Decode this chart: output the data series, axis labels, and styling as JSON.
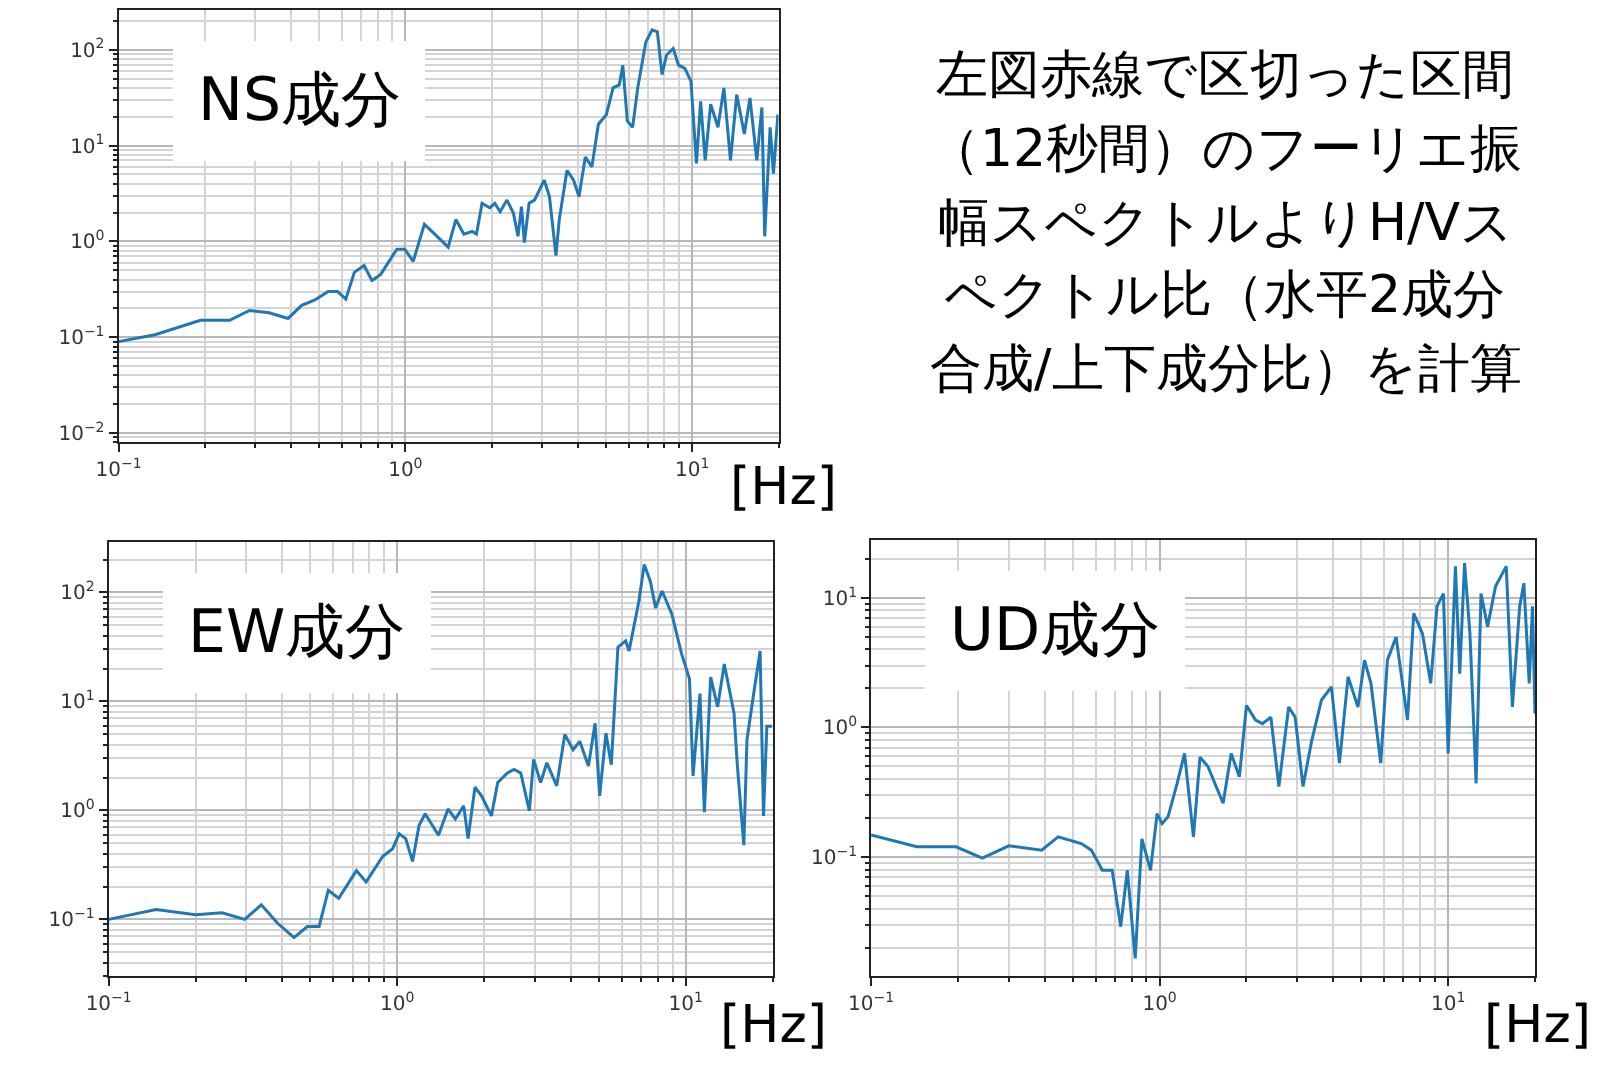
{
  "chart_data": [
    {
      "type": "line",
      "title": "NS成分",
      "xlabel": "[Hz]",
      "log": "xy",
      "grid": true,
      "color": "#1f77b4",
      "xlim": [
        0.1,
        20
      ],
      "ylim": [
        0.008,
        260
      ],
      "xticks": [
        {
          "value": 0.1,
          "label": "10$^{−1}$"
        },
        {
          "value": 1,
          "label": "10$^{0}$"
        },
        {
          "value": 10,
          "label": "10$^{1}$"
        }
      ],
      "yticks": [
        {
          "value": 0.01,
          "label": "10$^{−2}$"
        },
        {
          "value": 0.1,
          "label": "10$^{−1}$"
        },
        {
          "value": 1,
          "label": "10$^{0}$"
        },
        {
          "value": 10,
          "label": "10$^{1}$"
        },
        {
          "value": 100,
          "label": "10$^{2}$"
        }
      ],
      "x": [
        0.1,
        0.134,
        0.193,
        0.244,
        0.286,
        0.335,
        0.39,
        0.435,
        0.484,
        0.538,
        0.58,
        0.62,
        0.664,
        0.718,
        0.765,
        0.819,
        0.934,
        0.995,
        1.065,
        1.165,
        1.266,
        1.41,
        1.5,
        1.6,
        1.71,
        1.77,
        1.85,
        1.97,
        2.05,
        2.14,
        2.26,
        2.38,
        2.47,
        2.54,
        2.6,
        2.7,
        2.82,
        3.05,
        3.18,
        3.35,
        3.44,
        3.66,
        3.86,
        4.03,
        4.24,
        4.47,
        4.71,
        5.02,
        5.3,
        5.57,
        5.73,
        5.94,
        6.2,
        6.46,
        6.89,
        7.25,
        7.56,
        7.85,
        8.14,
        8.59,
        8.96,
        9.43,
        9.9,
        10.35,
        10.7,
        11.1,
        11.6,
        12.3,
        12.9,
        13.6,
        14.3,
        15.2,
        15.9,
        16.8,
        17.5,
        17.9,
        18.7,
        19.2,
        19.9
      ],
      "values": [
        0.09,
        0.106,
        0.15,
        0.15,
        0.19,
        0.18,
        0.157,
        0.215,
        0.245,
        0.3,
        0.3,
        0.25,
        0.475,
        0.56,
        0.39,
        0.45,
        0.83,
        0.83,
        0.62,
        1.51,
        1.19,
        0.87,
        1.69,
        1.19,
        1.27,
        1.19,
        2.5,
        2.24,
        2.5,
        2.04,
        2.7,
        1.98,
        1.13,
        2.3,
        0.97,
        2.5,
        2.7,
        4.35,
        2.93,
        0.71,
        1.69,
        5.5,
        4.35,
        2.93,
        7.6,
        6.0,
        16.7,
        21,
        40,
        43,
        69,
        18.1,
        15.5,
        40,
        120,
        161,
        154,
        55,
        88,
        103,
        69,
        64,
        47,
        6.5,
        29,
        7.0,
        27,
        15.5,
        40,
        7,
        34,
        13.2,
        31.4,
        7,
        25,
        1.13,
        15.5,
        5.1,
        21
      ]
    },
    {
      "type": "line",
      "title": "EW成分",
      "xlabel": "[Hz]",
      "log": "xy",
      "grid": true,
      "color": "#1f77b4",
      "xlim": [
        0.1,
        20
      ],
      "ylim": [
        0.03,
        290
      ],
      "xticks": [
        {
          "value": 0.1,
          "label": "10$^{−1}$"
        },
        {
          "value": 1,
          "label": "10$^{0}$"
        },
        {
          "value": 10,
          "label": "10$^{1}$"
        }
      ],
      "yticks": [
        {
          "value": 0.1,
          "label": "10$^{−1}$"
        },
        {
          "value": 1,
          "label": "10$^{0}$"
        },
        {
          "value": 10,
          "label": "10$^{1}$"
        },
        {
          "value": 100,
          "label": "10$^{2}$"
        }
      ],
      "x": [
        0.1,
        0.146,
        0.2,
        0.247,
        0.296,
        0.338,
        0.385,
        0.439,
        0.488,
        0.536,
        0.577,
        0.627,
        0.722,
        0.78,
        0.89,
        0.964,
        1.016,
        1.07,
        1.13,
        1.19,
        1.25,
        1.39,
        1.5,
        1.59,
        1.7,
        1.76,
        1.86,
        1.96,
        2.12,
        2.23,
        2.41,
        2.54,
        2.68,
        2.87,
        2.97,
        3.14,
        3.3,
        3.57,
        3.81,
        4.07,
        4.29,
        4.6,
        4.85,
        5.03,
        5.29,
        5.52,
        5.82,
        6.19,
        6.36,
        6.88,
        7.18,
        7.54,
        7.86,
        8.28,
        8.95,
        9.67,
        10.3,
        10.6,
        11.2,
        11.6,
        12.2,
        12.9,
        13.6,
        14.7,
        15.1,
        15.9,
        16.3,
        17.2,
        18.1,
        18.6,
        19.1,
        19.9
      ],
      "values": [
        0.1,
        0.123,
        0.11,
        0.115,
        0.1,
        0.136,
        0.092,
        0.068,
        0.086,
        0.086,
        0.185,
        0.156,
        0.28,
        0.22,
        0.377,
        0.445,
        0.61,
        0.55,
        0.34,
        0.725,
        0.93,
        0.59,
        1.03,
        0.83,
        1.1,
        0.55,
        1.63,
        1.36,
        0.89,
        1.8,
        2.2,
        2.37,
        2.2,
        0.99,
        2.93,
        1.8,
        2.73,
        1.68,
        4.98,
        3.6,
        4.3,
        2.55,
        6.3,
        1.36,
        5.1,
        2.62,
        31.4,
        36,
        29,
        83,
        180,
        126,
        72,
        103,
        63,
        27.4,
        16.1,
        2.07,
        11.8,
        0.96,
        16.7,
        8.9,
        22,
        7.8,
        2.55,
        0.48,
        4.45,
        11.8,
        29,
        0.89,
        5.9,
        5.9
      ]
    },
    {
      "type": "line",
      "title": "UD成分",
      "xlabel": "[Hz]",
      "log": "xy",
      "grid": true,
      "color": "#1f77b4",
      "xlim": [
        0.1,
        20
      ],
      "ylim": [
        0.012,
        28
      ],
      "xticks": [
        {
          "value": 0.1,
          "label": "10$^{−1}$"
        },
        {
          "value": 1,
          "label": "10$^{0}$"
        },
        {
          "value": 10,
          "label": "10$^{1}$"
        }
      ],
      "yticks": [
        {
          "value": 0.1,
          "label": "10$^{−1}$"
        },
        {
          "value": 1,
          "label": "10$^{0}$"
        },
        {
          "value": 10,
          "label": "10$^{1}$"
        }
      ],
      "x": [
        0.1,
        0.144,
        0.197,
        0.243,
        0.3,
        0.39,
        0.445,
        0.535,
        0.58,
        0.633,
        0.685,
        0.733,
        0.773,
        0.823,
        0.868,
        0.93,
        0.98,
        1.02,
        1.07,
        1.15,
        1.22,
        1.31,
        1.38,
        1.47,
        1.57,
        1.66,
        1.77,
        1.89,
        2.0,
        2.15,
        2.27,
        2.43,
        2.59,
        2.8,
        2.95,
        3.14,
        3.37,
        3.64,
        3.94,
        4.2,
        4.5,
        4.87,
        5.13,
        5.4,
        5.84,
        6.16,
        6.6,
        7.23,
        7.6,
        8.15,
        8.7,
        9.15,
        9.63,
        10.0,
        10.6,
        10.97,
        11.4,
        11.9,
        12.5,
        13.0,
        13.7,
        14.6,
        15.9,
        16.7,
        17.7,
        18.3,
        19.1,
        19.6,
        20
      ],
      "values": [
        0.148,
        0.12,
        0.12,
        0.098,
        0.122,
        0.113,
        0.143,
        0.127,
        0.113,
        0.079,
        0.079,
        0.029,
        0.079,
        0.0165,
        0.138,
        0.079,
        0.216,
        0.181,
        0.205,
        0.37,
        0.63,
        0.143,
        0.59,
        0.5,
        0.35,
        0.26,
        0.63,
        0.416,
        1.48,
        1.14,
        1.07,
        1.2,
        0.35,
        1.44,
        1.2,
        0.35,
        0.8,
        1.63,
        2.06,
        0.53,
        2.46,
        1.44,
        3.31,
        2.19,
        0.53,
        3.31,
        5.0,
        1.14,
        7.6,
        5.3,
        2.19,
        8.6,
        10.8,
        0.63,
        17.5,
        2.6,
        18.6,
        5.3,
        0.37,
        10.8,
        6.0,
        12.3,
        17.5,
        1.44,
        8.6,
        13,
        2.19,
        8.6,
        1.28
      ]
    },
    {
      "type": "other",
      "annotations": [
        "左図赤線で区切った区間",
        "（12秒間）のフーリエ振",
        "幅スペクトルよりH/Vス",
        "ペクトル比（水平2成分",
        "合成/上下成分比）を計算"
      ]
    }
  ]
}
